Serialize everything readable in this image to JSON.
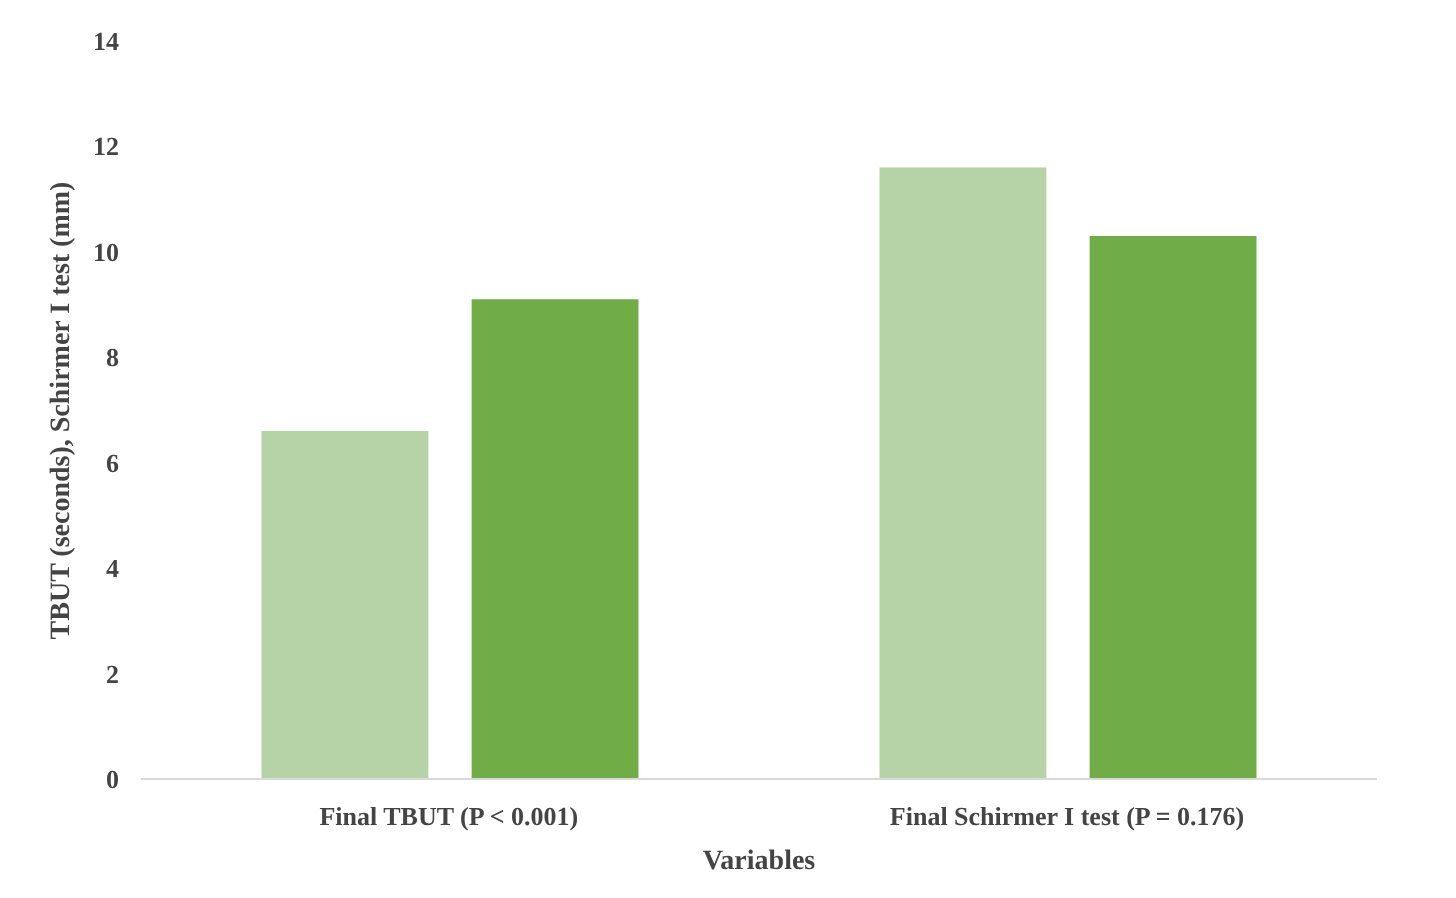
{
  "chart_data": {
    "type": "bar",
    "xlabel": "Variables",
    "ylabel": "TBUT (seconds), Schirmer I test (mm)",
    "categories": [
      "Final TBUT (P < 0.001)",
      "Final Schirmer I test (P = 0.176)"
    ],
    "series": [
      {
        "color": "#b5d3a7",
        "values": [
          6.6,
          11.6
        ]
      },
      {
        "color": "#70ad47",
        "values": [
          9.1,
          10.3
        ]
      }
    ],
    "ylim": [
      0,
      14
    ],
    "yticks": [
      0,
      2,
      4,
      6,
      8,
      10,
      12,
      14
    ],
    "grid": false
  }
}
